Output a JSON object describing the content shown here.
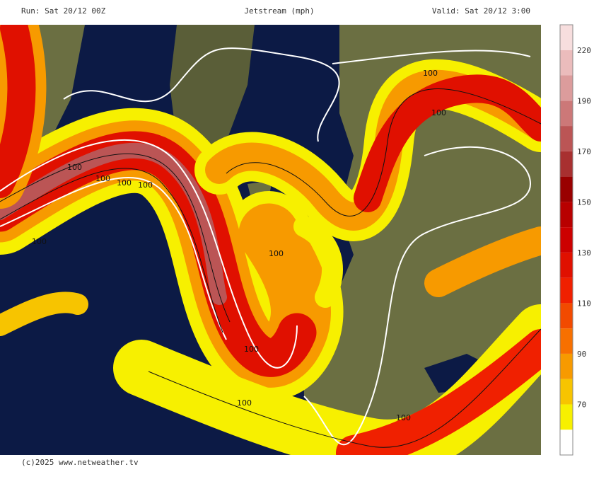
{
  "header": {
    "run": "Run: Sat 20/12 00Z",
    "title": "Jetstream (mph)",
    "valid": "Valid: Sat 20/12 3:00"
  },
  "footer": "(c)2025 www.netweather.tv",
  "legend": {
    "ticks": [
      "70",
      "90",
      "110",
      "130",
      "150",
      "170",
      "190",
      "220"
    ],
    "colors": [
      "#ffffff",
      "#f7f000",
      "#f7c400",
      "#f79a00",
      "#f77000",
      "#f24a00",
      "#f02000",
      "#e01000",
      "#cc0000",
      "#b80000",
      "#990000",
      "#a83030",
      "#bb5555",
      "#cc7878",
      "#dc9c9c",
      "#ebbcbc",
      "#f7dede"
    ]
  },
  "map": {
    "labels": [
      "100",
      "100",
      "100",
      "100",
      "100",
      "100",
      "100",
      "100",
      "100",
      "100",
      "100"
    ]
  }
}
